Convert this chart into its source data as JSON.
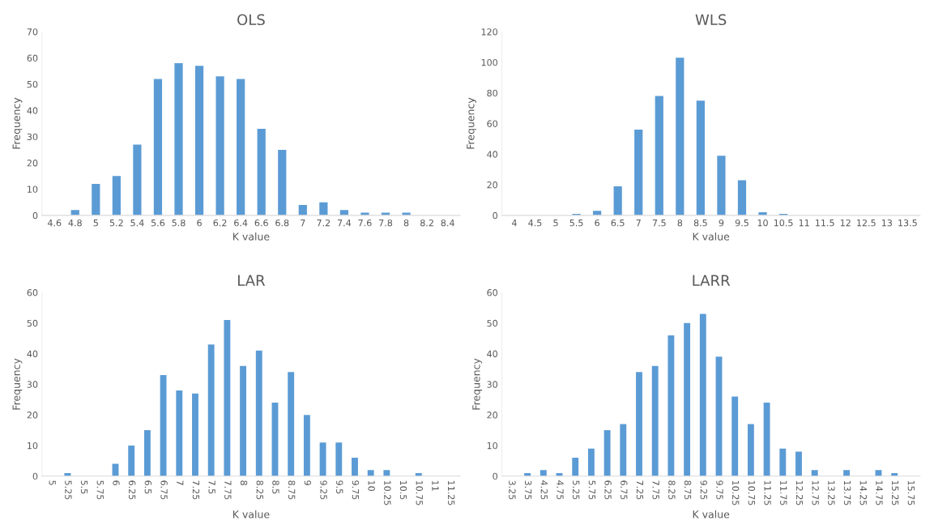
{
  "chart_data": [
    {
      "type": "bar",
      "title": "OLS",
      "xlabel": "K value",
      "ylabel": "Frequency",
      "color": "#5b9bd5",
      "grid": false,
      "categories": [
        "4.6",
        "4.8",
        "5",
        "5.2",
        "5.4",
        "5.6",
        "5.8",
        "6",
        "6.2",
        "6.4",
        "6.6",
        "6.8",
        "7",
        "7.2",
        "7.4",
        "7.6",
        "7.8",
        "8",
        "8.2",
        "8.4"
      ],
      "values": [
        0,
        2,
        12,
        15,
        27,
        52,
        58,
        57,
        53,
        52,
        33,
        25,
        4,
        5,
        2,
        1,
        1,
        1,
        0,
        0
      ],
      "ylim": [
        0,
        70
      ],
      "yticks": [
        0,
        10,
        20,
        30,
        40,
        50,
        60,
        70
      ]
    },
    {
      "type": "bar",
      "title": "WLS",
      "xlabel": "K value",
      "ylabel": "Frequency",
      "color": "#5b9bd5",
      "grid": false,
      "categories": [
        "4",
        "4.5",
        "5",
        "5.5",
        "6",
        "6.5",
        "7",
        "7.5",
        "8",
        "8.5",
        "9",
        "9.5",
        "10",
        "10.5",
        "11",
        "11.5",
        "12",
        "12.5",
        "13",
        "13.5"
      ],
      "values": [
        0,
        0,
        0,
        1,
        3,
        19,
        56,
        78,
        103,
        75,
        39,
        23,
        2,
        1,
        0,
        0,
        0,
        0,
        0,
        0
      ],
      "ylim": [
        0,
        120
      ],
      "yticks": [
        0,
        20,
        40,
        60,
        80,
        100,
        120
      ]
    },
    {
      "type": "bar",
      "title": "LAR",
      "xlabel": "K value",
      "ylabel": "Frequency",
      "color": "#5b9bd5",
      "grid": false,
      "categories": [
        "5",
        "5.25",
        "5.5",
        "5.75",
        "6",
        "6.25",
        "6.5",
        "6.75",
        "7",
        "7.25",
        "7.5",
        "7.75",
        "8",
        "8.25",
        "8.5",
        "8.75",
        "9",
        "9.25",
        "9.5",
        "9.75",
        "10",
        "10.25",
        "10.5",
        "10.75",
        "11",
        "11.25"
      ],
      "values": [
        0,
        1,
        0,
        0,
        4,
        10,
        15,
        33,
        28,
        27,
        43,
        51,
        36,
        41,
        24,
        34,
        20,
        11,
        11,
        6,
        2,
        2,
        0,
        1,
        0,
        0
      ],
      "ylim": [
        0,
        60
      ],
      "yticks": [
        0,
        10,
        20,
        30,
        40,
        50,
        60
      ]
    },
    {
      "type": "bar",
      "title": "LARR",
      "xlabel": "K value",
      "ylabel": "Frequency",
      "color": "#5b9bd5",
      "grid": false,
      "categories": [
        "3.25",
        "3.75",
        "4.25",
        "4.75",
        "5.25",
        "5.75",
        "6.25",
        "6.75",
        "7.25",
        "7.75",
        "8.25",
        "8.75",
        "9.25",
        "9.75",
        "10.25",
        "10.75",
        "11.25",
        "11.75",
        "12.25",
        "12.75",
        "13.25",
        "13.75",
        "14.25",
        "14.75",
        "15.25",
        "15.75"
      ],
      "values": [
        0,
        1,
        2,
        1,
        6,
        9,
        15,
        17,
        34,
        36,
        46,
        50,
        53,
        39,
        26,
        17,
        24,
        9,
        8,
        2,
        0,
        2,
        0,
        2,
        1,
        0
      ],
      "ylim": [
        0,
        60
      ],
      "yticks": [
        0,
        10,
        20,
        30,
        40,
        50,
        60
      ]
    }
  ]
}
